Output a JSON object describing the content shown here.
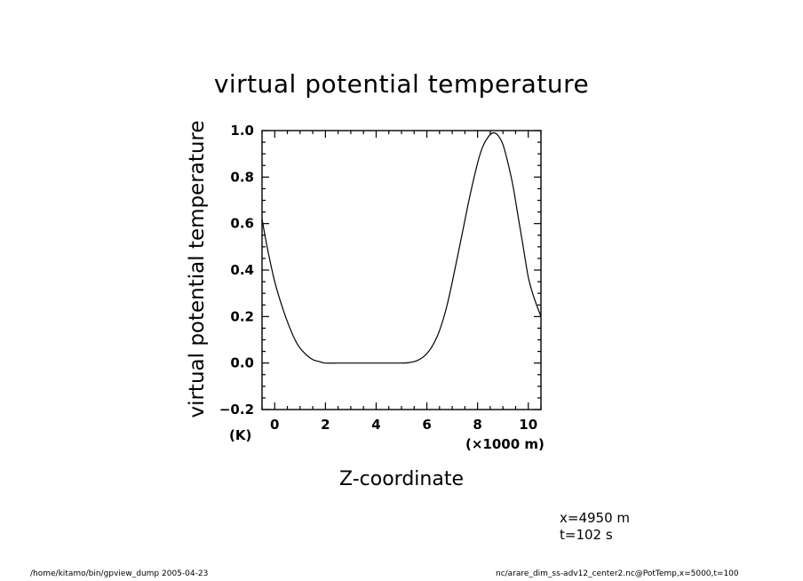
{
  "chart_data": {
    "type": "line",
    "title": "virtual potential temperature",
    "xlabel": "Z-coordinate",
    "ylabel": "virtual potential temperature",
    "xunit": "(×1000 m)",
    "yunit": "(K)",
    "xlim": [
      -0.5,
      10.5
    ],
    "ylim": [
      -0.2,
      1.0
    ],
    "xticks": [
      0,
      2,
      4,
      6,
      8,
      10
    ],
    "yticks": [
      -0.2,
      0.0,
      0.2,
      0.4,
      0.6,
      0.8,
      1.0
    ],
    "ytick_labels": [
      "−0.2",
      "0.0",
      "0.2",
      "0.4",
      "0.6",
      "0.8",
      "1.0"
    ],
    "xtick_labels": [
      "0",
      "2",
      "4",
      "6",
      "8",
      "10"
    ],
    "grid": false,
    "series": [
      {
        "x": [
          -0.5,
          -0.3,
          0.0,
          0.3,
          0.6,
          0.9,
          1.2,
          1.5,
          1.8,
          2.0,
          2.5,
          3.0,
          3.5,
          4.0,
          4.5,
          5.0,
          5.3,
          5.6,
          5.9,
          6.2,
          6.5,
          6.8,
          7.1,
          7.4,
          7.7,
          8.0,
          8.2,
          8.4,
          8.6,
          8.8,
          9.0,
          9.2,
          9.4,
          9.6,
          9.8,
          10.0,
          10.2,
          10.5
        ],
        "y": [
          0.62,
          0.5,
          0.35,
          0.24,
          0.15,
          0.08,
          0.04,
          0.015,
          0.005,
          0.0,
          0.0,
          0.0,
          0.0,
          0.0,
          0.0,
          0.0,
          0.002,
          0.01,
          0.03,
          0.07,
          0.14,
          0.25,
          0.4,
          0.56,
          0.72,
          0.86,
          0.93,
          0.97,
          0.99,
          0.98,
          0.94,
          0.86,
          0.76,
          0.63,
          0.5,
          0.37,
          0.29,
          0.2
        ]
      }
    ]
  },
  "info": {
    "line1": "x=4950  m",
    "line2": "t=102  s"
  },
  "footer": {
    "left": "/home/kitamo/bin/gpview_dump   2005-04-23",
    "right": "nc/arare_dim_ss-adv12_center2.nc@PotTemp,x=5000,t=100"
  }
}
